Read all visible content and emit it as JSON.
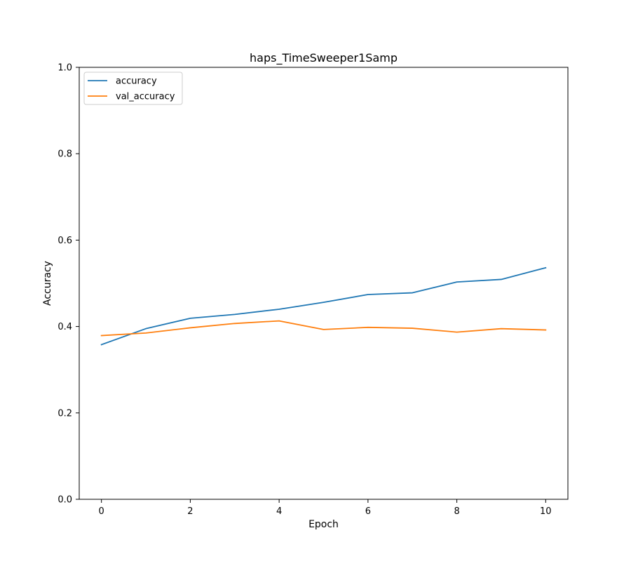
{
  "chart_data": {
    "type": "line",
    "title": "haps_TimeSweeper1Samp",
    "xlabel": "Epoch",
    "ylabel": "Accuracy",
    "xlim": [
      -0.5,
      10.5
    ],
    "ylim": [
      0.0,
      1.0
    ],
    "xticks": [
      0,
      2,
      4,
      6,
      8,
      10
    ],
    "xtick_labels": [
      "0",
      "2",
      "4",
      "6",
      "8",
      "10"
    ],
    "yticks": [
      0.0,
      0.2,
      0.4,
      0.6,
      0.8,
      1.0
    ],
    "ytick_labels": [
      "0.0",
      "0.2",
      "0.4",
      "0.6",
      "0.8",
      "1.0"
    ],
    "grid": false,
    "legend_position": "top-left",
    "x": [
      0,
      1,
      2,
      3,
      4,
      5,
      6,
      7,
      8,
      9,
      10
    ],
    "series": [
      {
        "name": "accuracy",
        "color": "#1f77b4",
        "values": [
          0.358,
          0.395,
          0.419,
          0.428,
          0.44,
          0.456,
          0.474,
          0.478,
          0.503,
          0.509,
          0.536
        ]
      },
      {
        "name": "val_accuracy",
        "color": "#ff7f0e",
        "values": [
          0.379,
          0.385,
          0.397,
          0.407,
          0.413,
          0.393,
          0.398,
          0.396,
          0.387,
          0.395,
          0.392
        ]
      }
    ]
  }
}
